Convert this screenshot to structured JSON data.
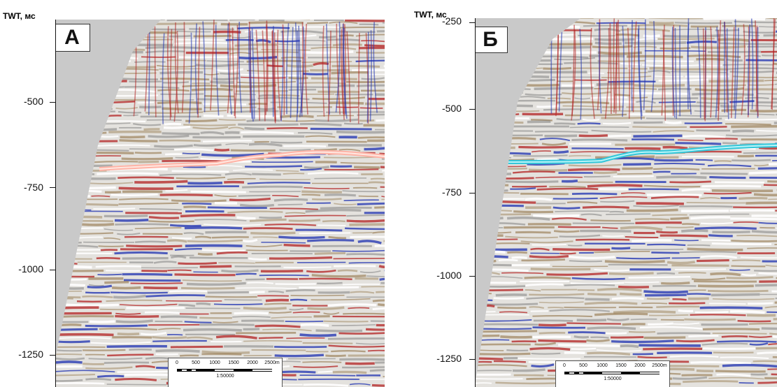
{
  "panels": [
    {
      "id": "A",
      "letter": "А",
      "axis_title": "TWT, мс",
      "ticks": [
        {
          "label": "-500"
        },
        {
          "label": "-750"
        },
        {
          "label": "-1000"
        },
        {
          "label": "-1250"
        }
      ],
      "horizon_color": "#ffb3a6",
      "horizon_core_color": "#ffe7e0",
      "scale_bar": {
        "labels": [
          "0",
          "500",
          "1000",
          "1500",
          "2000",
          "2500m"
        ],
        "ratio": "1:50000"
      }
    },
    {
      "id": "B",
      "letter": "Б",
      "axis_title": "TWT, мс",
      "ticks": [
        {
          "label": "-250"
        },
        {
          "label": "-500"
        },
        {
          "label": "-750"
        },
        {
          "label": "-1000"
        },
        {
          "label": "-1250"
        }
      ],
      "horizon_color": "#33c6d9",
      "horizon_core_color": "#b8f4f8",
      "scale_bar": {
        "labels": [
          "0",
          "500",
          "1000",
          "1500",
          "2000",
          "2500m"
        ],
        "ratio": "1:50000"
      }
    }
  ],
  "colors": {
    "background_gray": "#c9c9c9",
    "positive_red": "#b32020",
    "negative_blue": "#1c2fb0",
    "brown": "#8a6a3a"
  }
}
